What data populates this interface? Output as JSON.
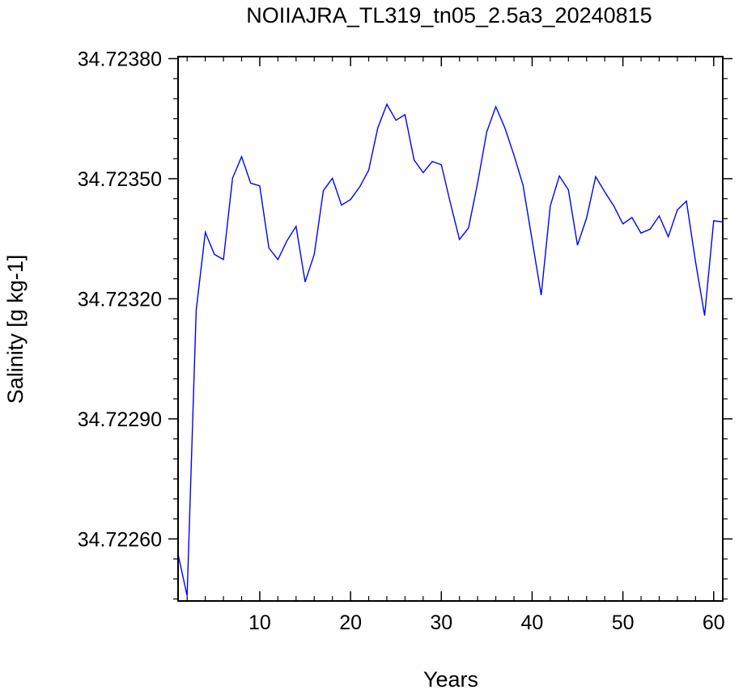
{
  "chart_data": {
    "type": "line",
    "title": "NOIIAJRA_TL319_tn05_2.5a3_20240815",
    "xlabel": "Years",
    "ylabel": "Salinity [g kg-1]",
    "xlim": [
      1,
      61
    ],
    "ylim": [
      34.722445,
      34.723805
    ],
    "x_ticks": [
      10,
      20,
      30,
      40,
      50,
      60
    ],
    "x_tick_labels": [
      "10",
      "20",
      "30",
      "40",
      "50",
      "60"
    ],
    "y_ticks": [
      34.7226,
      34.7229,
      34.7232,
      34.7235,
      34.7238
    ],
    "y_tick_labels": [
      "34.72260",
      "34.72290",
      "34.72320",
      "34.72350",
      "34.72380"
    ],
    "x_minor_step": 2,
    "y_minor_step": 5e-05,
    "grid": false,
    "legend": "none",
    "line_color": "#0000ff",
    "series": [
      {
        "x": [
          1,
          2,
          3,
          4,
          5,
          6,
          7,
          8,
          9,
          10,
          11,
          12,
          13,
          14,
          15,
          16,
          17,
          18,
          19,
          20,
          21,
          22,
          23,
          24,
          25,
          26,
          27,
          28,
          29,
          30,
          31,
          32,
          33,
          34,
          35,
          36,
          37,
          38,
          39,
          40,
          41,
          42,
          43,
          44,
          45,
          46,
          47,
          48,
          49,
          50,
          51,
          52,
          53,
          54,
          55,
          56,
          57,
          58,
          59,
          60,
          61
        ],
        "values": [
          34.722562,
          34.722458,
          34.723171,
          34.723366,
          34.723311,
          34.723298,
          34.723501,
          34.723555,
          34.723489,
          34.723482,
          34.723327,
          34.723298,
          34.723345,
          34.723381,
          34.723242,
          34.723311,
          34.72347,
          34.723501,
          34.723434,
          34.723448,
          34.723479,
          34.723521,
          34.723627,
          34.723686,
          34.723646,
          34.72366,
          34.723547,
          34.723515,
          34.723543,
          34.723535,
          34.723439,
          34.723348,
          34.723377,
          34.72349,
          34.723617,
          34.72368,
          34.723627,
          34.723559,
          34.723484,
          34.723346,
          34.723209,
          34.723432,
          34.723507,
          34.723472,
          34.723334,
          34.723402,
          34.723505,
          34.723467,
          34.723432,
          34.723387,
          34.723403,
          34.723364,
          34.723374,
          34.723407,
          34.723355,
          34.723422,
          34.723444,
          34.723292,
          34.723158,
          34.723395,
          34.723392
        ]
      }
    ]
  }
}
